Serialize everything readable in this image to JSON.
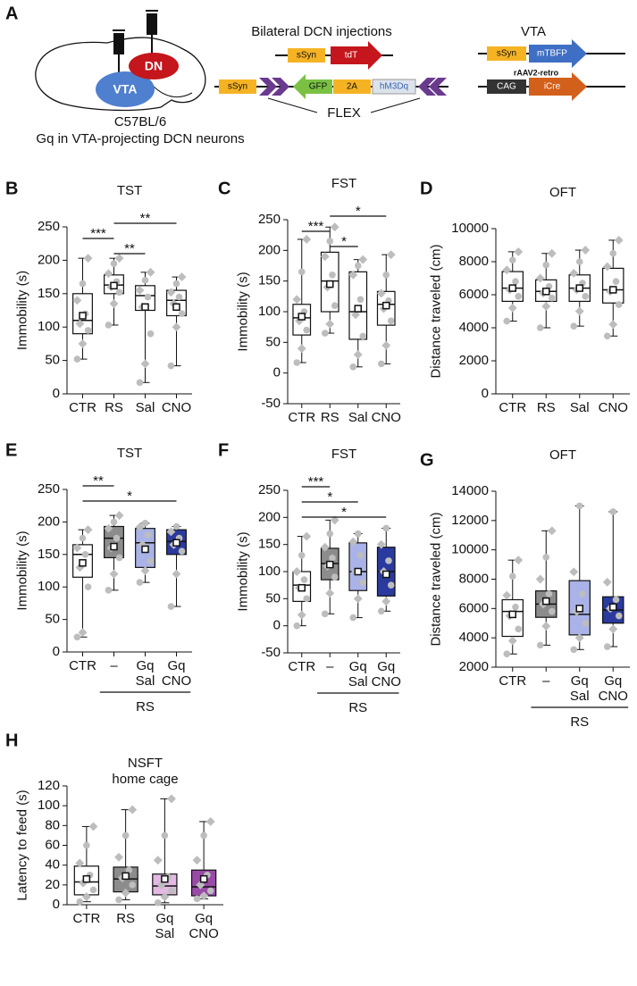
{
  "schematic": {
    "panel": "A",
    "mouse": "C57BL/6",
    "caption": "Gq in VTA-projecting DCN neurons",
    "region_vta": "VTA",
    "region_dn": "DN",
    "injection_title": "Bilateral DCN injections",
    "c1_promoter": "sSyn",
    "c1_gene": "tdT",
    "c2_promoter": "sSyn",
    "c2_gfp": "GFP",
    "c2_2a": "2A",
    "c2_gene": "hM3Dq",
    "flex": "FLEX",
    "vta_title": "VTA",
    "c3_promoter": "sSyn",
    "c3_gene": "mTBFP",
    "virus": "rAAV2-retro",
    "c4_promoter": "CAG",
    "c4_gene": "iCre"
  },
  "chart_data": [
    {
      "type": "box",
      "panel": "B",
      "title": "TST",
      "ylabel": "Immobility (s)",
      "ylim": [
        0,
        250
      ],
      "yticks": [
        0,
        50,
        100,
        150,
        200,
        250
      ],
      "categories": [
        "CTR",
        "RS",
        "Sal",
        "CNO"
      ],
      "boxes": [
        {
          "color": "#ffffff",
          "whisker_low": 52,
          "q1": 90,
          "median": 110,
          "q3": 150,
          "whisker_high": 203,
          "mean": 117,
          "points": [
            52,
            75,
            95,
            105,
            120,
            140,
            165,
            203
          ]
        },
        {
          "color": "#ffffff",
          "whisker_low": 103,
          "q1": 150,
          "median": 163,
          "q3": 178,
          "whisker_high": 203,
          "mean": 162,
          "points": [
            103,
            135,
            152,
            160,
            168,
            180,
            195,
            203
          ]
        },
        {
          "color": "#ffffff",
          "whisker_low": 17,
          "q1": 125,
          "median": 147,
          "q3": 162,
          "whisker_high": 182,
          "mean": 130,
          "points": [
            17,
            45,
            90,
            130,
            145,
            155,
            170,
            182
          ]
        },
        {
          "color": "#ffffff",
          "whisker_low": 42,
          "q1": 117,
          "median": 140,
          "q3": 155,
          "whisker_high": 175,
          "mean": 130,
          "points": [
            42,
            100,
            120,
            135,
            145,
            152,
            165,
            175
          ]
        }
      ],
      "significance": [
        {
          "label": "**",
          "from": "RS",
          "to": "CNO"
        },
        {
          "label": "***",
          "from": "CTR",
          "to": "RS"
        },
        {
          "label": "**",
          "from": "RS",
          "to": "Sal"
        }
      ]
    },
    {
      "type": "box",
      "panel": "C",
      "title": "FST",
      "ylabel": "Immobility (s)",
      "ylim": [
        -50,
        250
      ],
      "yticks": [
        -50,
        0,
        50,
        100,
        150,
        200,
        250
      ],
      "categories": [
        "CTR",
        "RS",
        "Sal",
        "CNO"
      ],
      "boxes": [
        {
          "color": "#ffffff",
          "whisker_low": 17,
          "q1": 62,
          "median": 90,
          "q3": 112,
          "whisker_high": 218,
          "mean": 92,
          "points": [
            17,
            40,
            70,
            85,
            100,
            120,
            165,
            218
          ]
        },
        {
          "color": "#ffffff",
          "whisker_low": 65,
          "q1": 100,
          "median": 150,
          "q3": 197,
          "whisker_high": 238,
          "mean": 145,
          "points": [
            65,
            80,
            110,
            140,
            160,
            190,
            215,
            238
          ]
        },
        {
          "color": "#ffffff",
          "whisker_low": 10,
          "q1": 55,
          "median": 100,
          "q3": 165,
          "whisker_high": 185,
          "mean": 105,
          "points": [
            10,
            30,
            60,
            95,
            120,
            160,
            175,
            185
          ]
        },
        {
          "color": "#ffffff",
          "whisker_low": 15,
          "q1": 78,
          "median": 112,
          "q3": 133,
          "whisker_high": 193,
          "mean": 110,
          "points": [
            15,
            45,
            85,
            105,
            118,
            130,
            160,
            193
          ]
        }
      ],
      "significance": [
        {
          "label": "*",
          "from": "RS",
          "to": "CNO"
        },
        {
          "label": "***",
          "from": "CTR",
          "to": "RS"
        },
        {
          "label": "*",
          "from": "RS",
          "to": "Sal"
        }
      ]
    },
    {
      "type": "box",
      "panel": "D",
      "title": "OFT",
      "ylabel": "Distance traveled (cm)",
      "ylim": [
        0,
        10000
      ],
      "yticks": [
        0,
        2000,
        4000,
        6000,
        8000,
        10000
      ],
      "categories": [
        "CTR",
        "RS",
        "Sal",
        "CNO"
      ],
      "boxes": [
        {
          "color": "#ffffff",
          "whisker_low": 4400,
          "q1": 5600,
          "median": 6400,
          "q3": 7400,
          "whisker_high": 8600,
          "mean": 6400,
          "points": [
            4400,
            5200,
            5900,
            6300,
            6800,
            7500,
            8100,
            8600
          ]
        },
        {
          "color": "#ffffff",
          "whisker_low": 4000,
          "q1": 5600,
          "median": 6200,
          "q3": 6900,
          "whisker_high": 8500,
          "mean": 6200,
          "points": [
            4000,
            5300,
            5800,
            6100,
            6500,
            7000,
            7800,
            8500
          ]
        },
        {
          "color": "#ffffff",
          "whisker_low": 4100,
          "q1": 5600,
          "median": 6400,
          "q3": 7200,
          "whisker_high": 8700,
          "mean": 6400,
          "points": [
            4100,
            5000,
            5900,
            6300,
            6700,
            7300,
            8000,
            8700
          ]
        },
        {
          "color": "#ffffff",
          "whisker_low": 3500,
          "q1": 5500,
          "median": 6300,
          "q3": 7600,
          "whisker_high": 9300,
          "mean": 6300,
          "points": [
            3500,
            4200,
            5400,
            6200,
            6800,
            7700,
            8500,
            9300
          ]
        }
      ],
      "significance": []
    },
    {
      "type": "box",
      "panel": "E",
      "title": "TST",
      "ylabel": "Immobility (s)",
      "ylim": [
        0,
        250
      ],
      "yticks": [
        0,
        50,
        100,
        150,
        200,
        250
      ],
      "categories": [
        "CTR",
        "–",
        "Gq Sal",
        "Gq CNO"
      ],
      "group": {
        "label": "RS",
        "from": "–",
        "to": "Gq CNO"
      },
      "boxes": [
        {
          "color": "#ffffff",
          "whisker_low": 23,
          "q1": 115,
          "median": 150,
          "q3": 165,
          "whisker_high": 188,
          "mean": 137,
          "points": [
            23,
            30,
            100,
            130,
            150,
            160,
            175,
            188
          ]
        },
        {
          "color": "#8c8c8c",
          "whisker_low": 95,
          "q1": 145,
          "median": 175,
          "q3": 193,
          "whisker_high": 210,
          "mean": 162,
          "points": [
            95,
            120,
            145,
            160,
            175,
            190,
            200,
            210
          ]
        },
        {
          "color": "#a9b3e8",
          "whisker_low": 107,
          "q1": 130,
          "median": 168,
          "q3": 190,
          "whisker_high": 198,
          "mean": 158,
          "points": [
            107,
            125,
            140,
            165,
            180,
            192,
            198
          ]
        },
        {
          "color": "#2a3a9e",
          "whisker_low": 70,
          "q1": 150,
          "median": 170,
          "q3": 188,
          "whisker_high": 193,
          "mean": 168,
          "points": [
            70,
            120,
            155,
            165,
            175,
            185,
            193
          ]
        }
      ],
      "significance": [
        {
          "label": "**",
          "from": "CTR",
          "to": "–"
        },
        {
          "label": "*",
          "from": "CTR",
          "to": "Gq CNO"
        }
      ]
    },
    {
      "type": "box",
      "panel": "F",
      "title": "FST",
      "ylabel": "Immobility (s)",
      "ylim": [
        -50,
        250
      ],
      "yticks": [
        -50,
        0,
        50,
        100,
        150,
        200,
        250
      ],
      "categories": [
        "CTR",
        "–",
        "Gq Sal",
        "Gq CNO"
      ],
      "group": {
        "label": "RS",
        "from": "–",
        "to": "Gq CNO"
      },
      "boxes": [
        {
          "color": "#ffffff",
          "whisker_low": 0,
          "q1": 45,
          "median": 75,
          "q3": 100,
          "whisker_high": 165,
          "mean": 70,
          "points": [
            0,
            20,
            50,
            70,
            85,
            100,
            130,
            165
          ]
        },
        {
          "color": "#8c8c8c",
          "whisker_low": 22,
          "q1": 85,
          "median": 115,
          "q3": 143,
          "whisker_high": 195,
          "mean": 113,
          "points": [
            22,
            60,
            90,
            110,
            125,
            145,
            170,
            195
          ]
        },
        {
          "color": "#a9b3e8",
          "whisker_low": 15,
          "q1": 65,
          "median": 100,
          "q3": 153,
          "whisker_high": 170,
          "mean": 100,
          "points": [
            15,
            50,
            80,
            100,
            130,
            155,
            170
          ]
        },
        {
          "color": "#2a3a9e",
          "whisker_low": 27,
          "q1": 55,
          "median": 100,
          "q3": 145,
          "whisker_high": 180,
          "mean": 95,
          "points": [
            27,
            45,
            75,
            100,
            120,
            150,
            180
          ]
        }
      ],
      "significance": [
        {
          "label": "***",
          "from": "CTR",
          "to": "–"
        },
        {
          "label": "*",
          "from": "CTR",
          "to": "Gq Sal"
        },
        {
          "label": "*",
          "from": "CTR",
          "to": "Gq CNO"
        }
      ]
    },
    {
      "type": "box",
      "panel": "G",
      "title": "OFT",
      "ylabel": "Distance traveled (cm)",
      "ylim": [
        2000,
        14000
      ],
      "yticks": [
        2000,
        4000,
        6000,
        8000,
        10000,
        12000,
        14000
      ],
      "categories": [
        "CTR",
        "–",
        "Gq Sal",
        "Gq CNO"
      ],
      "group": {
        "label": "RS",
        "from": "–",
        "to": "Gq CNO"
      },
      "boxes": [
        {
          "color": "#ffffff",
          "whisker_low": 2900,
          "q1": 4100,
          "median": 5800,
          "q3": 6600,
          "whisker_high": 9300,
          "mean": 5600,
          "points": [
            2900,
            3800,
            4600,
            5500,
            6100,
            6900,
            8200,
            9300
          ]
        },
        {
          "color": "#8c8c8c",
          "whisker_low": 3500,
          "q1": 5400,
          "median": 6300,
          "q3": 7200,
          "whisker_high": 11300,
          "mean": 6500,
          "points": [
            3500,
            4800,
            5800,
            6300,
            7000,
            8000,
            9500,
            11300
          ]
        },
        {
          "color": "#a9b3e8",
          "whisker_low": 3200,
          "q1": 4200,
          "median": 5600,
          "q3": 7900,
          "whisker_high": 13000,
          "mean": 6000,
          "points": [
            3200,
            4000,
            5000,
            5800,
            7000,
            8500,
            13000
          ]
        },
        {
          "color": "#2a3a9e",
          "whisker_low": 3400,
          "q1": 5000,
          "median": 5900,
          "q3": 6800,
          "whisker_high": 12600,
          "mean": 6100,
          "points": [
            3400,
            4600,
            5500,
            6000,
            6600,
            7800,
            12600
          ]
        }
      ],
      "significance": []
    },
    {
      "type": "box",
      "panel": "H",
      "title": "NSFT",
      "subtitle": "home cage",
      "ylabel": "Latency to feed (s)",
      "ylim": [
        0,
        120
      ],
      "yticks": [
        0,
        20,
        40,
        60,
        80,
        100,
        120
      ],
      "categories": [
        "CTR",
        "RS",
        "Gq Sal",
        "Gq CNO"
      ],
      "boxes": [
        {
          "color": "#ffffff",
          "whisker_low": 3,
          "q1": 10,
          "median": 23,
          "q3": 39,
          "whisker_high": 79,
          "mean": 26,
          "points": [
            3,
            8,
            15,
            22,
            30,
            42,
            60,
            79
          ]
        },
        {
          "color": "#8c8c8c",
          "whisker_low": 5,
          "q1": 13,
          "median": 26,
          "q3": 38,
          "whisker_high": 96,
          "mean": 29,
          "points": [
            5,
            12,
            20,
            27,
            35,
            48,
            70,
            96
          ]
        },
        {
          "color": "#e3b8e3",
          "whisker_low": 2,
          "q1": 10,
          "median": 19,
          "q3": 31,
          "whisker_high": 107,
          "mean": 26,
          "points": [
            2,
            8,
            14,
            20,
            28,
            45,
            70,
            107
          ]
        },
        {
          "color": "#9a4ba8",
          "whisker_low": 6,
          "q1": 9,
          "median": 18,
          "q3": 35,
          "whisker_high": 84,
          "mean": 26,
          "points": [
            6,
            9,
            14,
            20,
            30,
            45,
            70,
            84
          ]
        }
      ],
      "significance": []
    }
  ]
}
